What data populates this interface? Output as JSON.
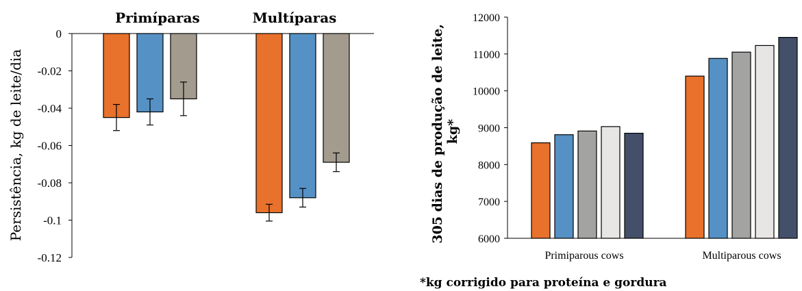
{
  "chart_data": [
    {
      "type": "bar",
      "ylabel": "Persistência, kg de leite/dia",
      "categories": [
        "Primíparas",
        "Multíparas"
      ],
      "ylim": [
        -0.12,
        0
      ],
      "yticks": [
        "0",
        "-0.02",
        "-0.04",
        "-0.06",
        "-0.08",
        "-0.1",
        "-0.12"
      ],
      "grid": false,
      "error_bars": true,
      "series": [
        {
          "color": "#E8712C",
          "values": [
            -0.045,
            -0.096
          ],
          "err": [
            0.007,
            0.0045
          ]
        },
        {
          "color": "#5591C5",
          "values": [
            -0.042,
            -0.088
          ],
          "err": [
            0.007,
            0.005
          ]
        },
        {
          "color": "#A39B8E",
          "values": [
            -0.035,
            -0.069
          ],
          "err": [
            0.009,
            0.005
          ]
        }
      ]
    },
    {
      "type": "bar",
      "ylabel": "305 dias de produção de leite, kg*",
      "categories": [
        "Primiparous cows",
        "Multiparous cows"
      ],
      "ylim": [
        6000,
        12000
      ],
      "yticks": [
        "6000",
        "7000",
        "8000",
        "9000",
        "10000",
        "11000",
        "12000"
      ],
      "grid": false,
      "footnote": "*kg corrigido para proteína e gordura",
      "series": [
        {
          "color": "#E8712C",
          "values": [
            8590,
            10400
          ]
        },
        {
          "color": "#5591C5",
          "values": [
            8810,
            10880
          ]
        },
        {
          "color": "#A3A4A2",
          "values": [
            8910,
            11050
          ]
        },
        {
          "color": "#E7E6E4",
          "values": [
            9030,
            11230
          ]
        },
        {
          "color": "#44506A",
          "values": [
            8850,
            11450
          ]
        }
      ]
    }
  ]
}
